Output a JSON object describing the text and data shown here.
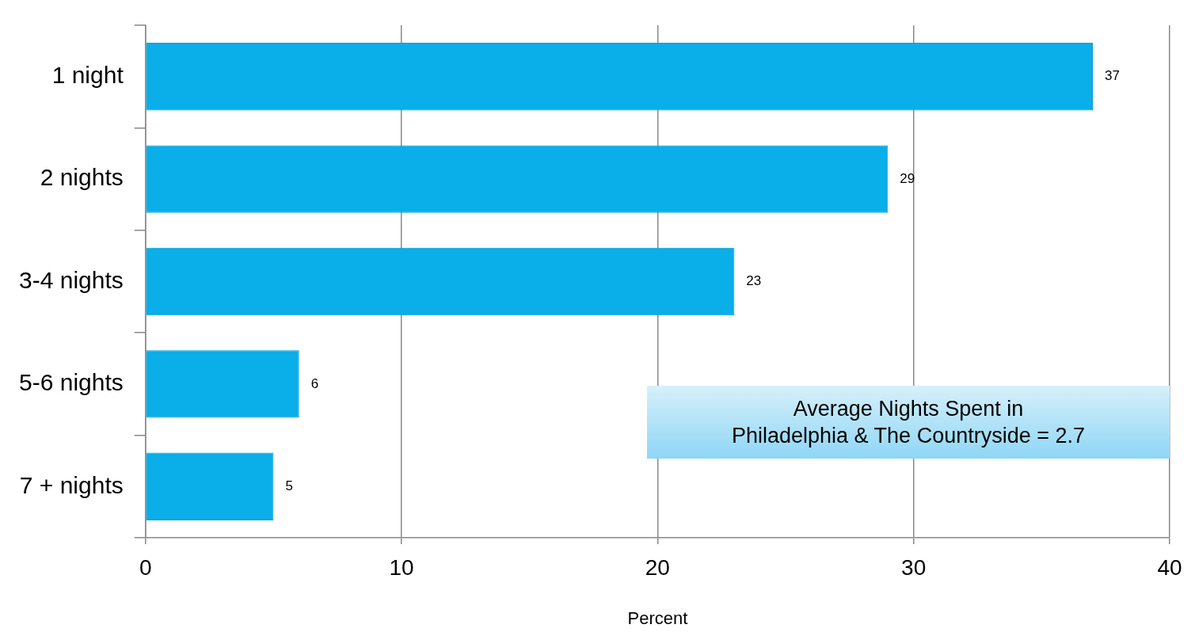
{
  "chart_data": {
    "type": "bar",
    "orientation": "horizontal",
    "categories": [
      "1 night",
      "2 nights",
      "3-4 nights",
      "5-6 nights",
      "7 + nights"
    ],
    "values": [
      37,
      29,
      23,
      6,
      5
    ],
    "color": "#0aaee8",
    "xlim": [
      0,
      40
    ],
    "xticks": [
      0,
      10,
      20,
      30,
      40
    ],
    "xlabel": "Percent",
    "grid": "x",
    "legend": false,
    "data_labels": true,
    "annotations": [
      "Average Nights Spent in\nPhiladelphia & The Countryside = 2.7"
    ]
  }
}
